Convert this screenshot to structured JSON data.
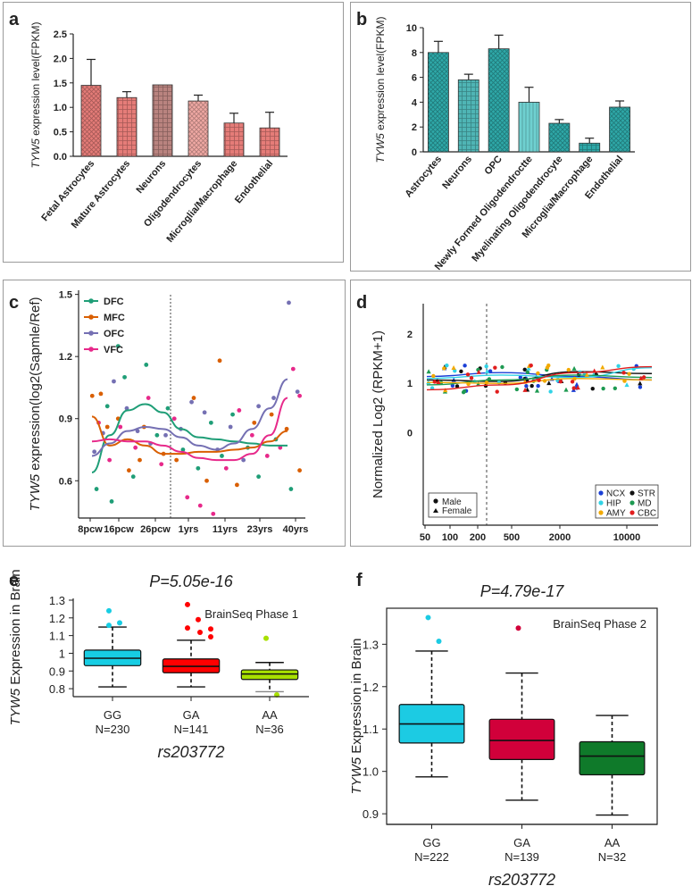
{
  "chart_data": [
    {
      "panel": "a",
      "type": "bar",
      "ylabel_italic": "TYW5",
      "ylabel_rest": " expression level(FPKM)",
      "yticks": [
        "0.0",
        "0.5",
        "1.0",
        "1.5",
        "2.0",
        "2.5"
      ],
      "ylim": [
        0,
        2.5
      ],
      "categories": [
        "Fetal Astrocytes",
        "Mature Astrocytes",
        "Neurons",
        "Oligodendrocytes",
        "Microglia/Macrophage",
        "Endothelial"
      ],
      "values": [
        1.45,
        1.2,
        1.46,
        1.13,
        0.68,
        0.58
      ],
      "errors": [
        0.53,
        0.12,
        0.0,
        0.12,
        0.2,
        0.32
      ],
      "color": "#e57c78"
    },
    {
      "panel": "b",
      "type": "bar",
      "ylabel_italic": "TYW5",
      "ylabel_rest": " expression level(FPKM)",
      "yticks": [
        "0",
        "2",
        "4",
        "6",
        "8",
        "10"
      ],
      "ylim": [
        0,
        10
      ],
      "categories": [
        "Astrocytes",
        "Neurons",
        "OPC",
        "Newly Formed Oligodendroctte",
        "Myelinating Oligodendrocyte",
        "Microglia/Macrophage",
        "Endothelial"
      ],
      "values": [
        8.0,
        5.8,
        8.3,
        4.0,
        2.3,
        0.7,
        3.6
      ],
      "errors": [
        0.9,
        0.45,
        1.1,
        1.2,
        0.3,
        0.4,
        0.5
      ],
      "color": "#2ea8a8"
    },
    {
      "panel": "c",
      "type": "scatter",
      "ylabel_italic": "TYW5",
      "ylabel_rest": " expression(log2(Sapmle/Ref)",
      "yticks": [
        "0.6",
        "0.9",
        "1.2",
        "1.5"
      ],
      "ylim": [
        0.42,
        1.52
      ],
      "xticks": [
        "8pcw",
        "16pcw",
        "26pcw",
        "1yrs",
        "11yrs",
        "23yrs",
        "40yrs"
      ],
      "series": [
        {
          "name": "DFC",
          "color": "#1f9e77",
          "curve": [
            0.64,
            0.82,
            0.94,
            0.97,
            0.93,
            0.85,
            0.81,
            0.8,
            0.79,
            0.78,
            0.77,
            0.77
          ],
          "points": [
            [
              0.05,
              0.56
            ],
            [
              0.1,
              0.96
            ],
            [
              0.12,
              0.5
            ],
            [
              0.18,
              1.1
            ],
            [
              0.22,
              0.62
            ],
            [
              0.28,
              1.16
            ],
            [
              0.33,
              0.82
            ],
            [
              0.38,
              0.95
            ],
            [
              0.45,
              0.75
            ],
            [
              0.52,
              0.66
            ],
            [
              0.58,
              0.88
            ],
            [
              0.63,
              0.72
            ],
            [
              0.68,
              0.92
            ],
            [
              0.75,
              0.76
            ],
            [
              0.8,
              0.62
            ],
            [
              0.88,
              0.8
            ],
            [
              0.95,
              0.56
            ],
            [
              0.15,
              1.25
            ]
          ]
        },
        {
          "name": "MFC",
          "color": "#d95f02",
          "curve": [
            0.91,
            0.77,
            0.8,
            0.77,
            0.73,
            0.73,
            0.74,
            0.74,
            0.75,
            0.76,
            0.79,
            0.84
          ],
          "points": [
            [
              0.03,
              1.01
            ],
            [
              0.07,
              1.02
            ],
            [
              0.1,
              0.86
            ],
            [
              0.15,
              0.9
            ],
            [
              0.2,
              0.65
            ],
            [
              0.27,
              0.86
            ],
            [
              0.36,
              0.73
            ],
            [
              0.42,
              0.7
            ],
            [
              0.5,
              1.0
            ],
            [
              0.56,
              0.6
            ],
            [
              0.62,
              1.18
            ],
            [
              0.7,
              0.58
            ],
            [
              0.78,
              0.88
            ],
            [
              0.86,
              0.92
            ],
            [
              0.93,
              0.85
            ],
            [
              0.99,
              0.65
            ],
            [
              0.25,
              0.7
            ]
          ]
        },
        {
          "name": "OFC",
          "color": "#7570b3",
          "curve": [
            0.72,
            0.78,
            0.84,
            0.86,
            0.85,
            0.81,
            0.77,
            0.75,
            0.78,
            0.85,
            0.95,
            1.09
          ],
          "points": [
            [
              0.04,
              0.74
            ],
            [
              0.08,
              0.83
            ],
            [
              0.13,
              1.08
            ],
            [
              0.19,
              0.95
            ],
            [
              0.24,
              0.84
            ],
            [
              0.3,
              0.78
            ],
            [
              0.37,
              0.82
            ],
            [
              0.44,
              0.85
            ],
            [
              0.49,
              0.98
            ],
            [
              0.55,
              0.93
            ],
            [
              0.61,
              0.75
            ],
            [
              0.67,
              0.86
            ],
            [
              0.73,
              0.7
            ],
            [
              0.8,
              0.96
            ],
            [
              0.87,
              1.0
            ],
            [
              0.94,
              1.46
            ],
            [
              0.98,
              1.03
            ]
          ]
        },
        {
          "name": "VFC",
          "color": "#e7298a",
          "curve": [
            0.79,
            0.8,
            0.79,
            0.79,
            0.77,
            0.74,
            0.71,
            0.7,
            0.7,
            0.73,
            0.82,
            1.0
          ],
          "points": [
            [
              0.06,
              0.88
            ],
            [
              0.11,
              0.7
            ],
            [
              0.16,
              0.86
            ],
            [
              0.23,
              0.76
            ],
            [
              0.29,
              1.0
            ],
            [
              0.35,
              0.68
            ],
            [
              0.41,
              0.9
            ],
            [
              0.47,
              0.52
            ],
            [
              0.53,
              0.48
            ],
            [
              0.59,
              0.44
            ],
            [
              0.65,
              0.66
            ],
            [
              0.71,
              0.94
            ],
            [
              0.77,
              0.82
            ],
            [
              0.84,
              0.72
            ],
            [
              0.9,
              0.76
            ],
            [
              0.96,
              1.14
            ],
            [
              0.99,
              1.01
            ]
          ]
        }
      ]
    },
    {
      "panel": "d",
      "type": "scatter",
      "ylabel": "Normalized Log2 (RPKM+1)",
      "yticks": [
        "0",
        "1",
        "2"
      ],
      "ylim": [
        -1.9,
        2.6
      ],
      "xticks": [
        "50",
        "100",
        "200",
        "500",
        "2000",
        "10000"
      ],
      "vline_label": "",
      "legend_shape": [
        "Male",
        "Female"
      ],
      "legend_regions": [
        {
          "name": "NCX",
          "color": "#1a3fd6"
        },
        {
          "name": "STR",
          "color": "#111111"
        },
        {
          "name": "HIP",
          "color": "#31d3e6"
        },
        {
          "name": "MD",
          "color": "#1e9a52"
        },
        {
          "name": "AMY",
          "color": "#f2a900"
        },
        {
          "name": "CBC",
          "color": "#e11d1d"
        }
      ]
    },
    {
      "panel": "e",
      "type": "box",
      "title": "P=5.05e-16",
      "ylabel_italic": "TYW5",
      "ylabel_rest": " Expression in Brain",
      "yticks": [
        "0.8",
        "0.9",
        "1",
        "1.1",
        "1.2",
        "1.3"
      ],
      "ylim": [
        0.755,
        1.31
      ],
      "annotation": "BrainSeq Phase 1",
      "xlabel": "rs203772",
      "categories": [
        "GG",
        "GA",
        "AA"
      ],
      "counts": [
        "N=230",
        "N=141",
        "N=36"
      ],
      "boxes": [
        {
          "min": 0.81,
          "q1": 0.93,
          "median": 0.972,
          "q3": 1.018,
          "max": 1.148,
          "color": "#17cde3",
          "outliers": [
            1.24,
            1.172,
            1.158
          ]
        },
        {
          "min": 0.81,
          "q1": 0.89,
          "median": 0.926,
          "q3": 0.968,
          "max": 1.074,
          "color": "#ff0000",
          "outliers": [
            1.275,
            1.19,
            1.143,
            1.137,
            1.118,
            1.093
          ]
        },
        {
          "min": 0.783,
          "q1": 0.852,
          "median": 0.883,
          "q3": 0.906,
          "max": 0.948,
          "color": "#a8e000",
          "outliers": [
            1.085,
            0.765
          ]
        }
      ]
    },
    {
      "panel": "f",
      "type": "box",
      "title": "P=4.79e-17",
      "ylabel_italic": "TYW5",
      "ylabel_rest": " Expression in Brain",
      "yticks": [
        "0.9",
        "1.0",
        "1.1",
        "1.2",
        "1.3"
      ],
      "ylim": [
        0.875,
        1.385
      ],
      "annotation": "BrainSeq Phase 2",
      "xlabel": "rs203772",
      "categories": [
        "GG",
        "GA",
        "AA"
      ],
      "counts": [
        "N=222",
        "N=139",
        "N=32"
      ],
      "boxes": [
        {
          "min": 0.987,
          "q1": 1.067,
          "median": 1.112,
          "q3": 1.158,
          "max": 1.284,
          "color": "#1ccbe3",
          "outliers": [
            1.363,
            1.307
          ]
        },
        {
          "min": 0.932,
          "q1": 1.028,
          "median": 1.073,
          "q3": 1.123,
          "max": 1.232,
          "color": "#d1003a",
          "outliers": [
            1.338
          ]
        },
        {
          "min": 0.897,
          "q1": 0.992,
          "median": 1.036,
          "q3": 1.07,
          "max": 1.132,
          "color": "#0f7a2a",
          "outliers": []
        }
      ]
    }
  ],
  "panels": {
    "a": "a",
    "b": "b",
    "c": "c",
    "d": "d",
    "e": "e",
    "f": "f"
  }
}
